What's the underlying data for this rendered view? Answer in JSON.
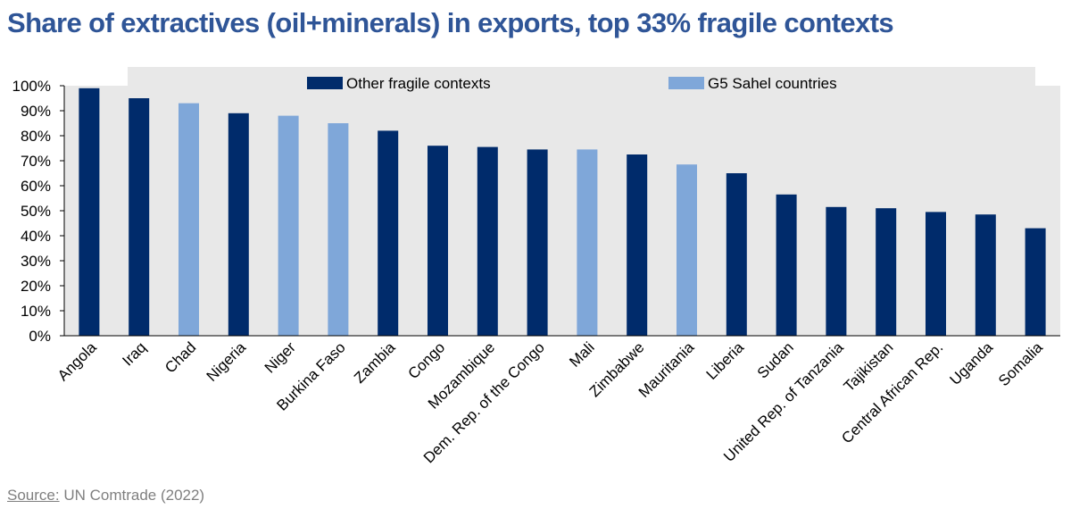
{
  "title": "Share of extractives (oil+minerals) in exports, top 33% fragile contexts",
  "source": {
    "label": "Source:",
    "text": " UN Comtrade (2022)"
  },
  "colors": {
    "other": "#002b6b",
    "g5": "#7fa7d9",
    "plot_bg": "#e8e8e8",
    "title": "#2f5597"
  },
  "chart_data": {
    "type": "bar",
    "title": "Share of extractives (oil+minerals) in exports, top 33% fragile contexts",
    "xlabel": "",
    "ylabel": "",
    "ylim": [
      0,
      100
    ],
    "yticks": [
      "0%",
      "10%",
      "20%",
      "30%",
      "40%",
      "50%",
      "60%",
      "70%",
      "80%",
      "90%",
      "100%"
    ],
    "grid": false,
    "legend_position": "top",
    "legend": [
      {
        "name": "Other fragile contexts",
        "group": "other"
      },
      {
        "name": "G5 Sahel countries",
        "group": "g5"
      }
    ],
    "categories": [
      "Angola",
      "Iraq",
      "Chad",
      "Nigeria",
      "Niger",
      "Burkina Faso",
      "Zambia",
      "Congo",
      "Mozambique",
      "Dem. Rep. of the Congo",
      "Mali",
      "Zimbabwe",
      "Mauritania",
      "Liberia",
      "Sudan",
      "United Rep. of Tanzania",
      "Tajikistan",
      "Central African Rep.",
      "Uganda",
      "Somalia"
    ],
    "values": [
      99,
      95,
      93,
      89,
      88,
      85,
      82,
      76,
      75.5,
      74.5,
      74.5,
      72.5,
      68.5,
      65,
      56.5,
      51.5,
      51,
      49.5,
      48.5,
      43
    ],
    "groups": [
      "other",
      "other",
      "g5",
      "other",
      "g5",
      "g5",
      "other",
      "other",
      "other",
      "other",
      "g5",
      "other",
      "g5",
      "other",
      "other",
      "other",
      "other",
      "other",
      "other",
      "other"
    ]
  }
}
